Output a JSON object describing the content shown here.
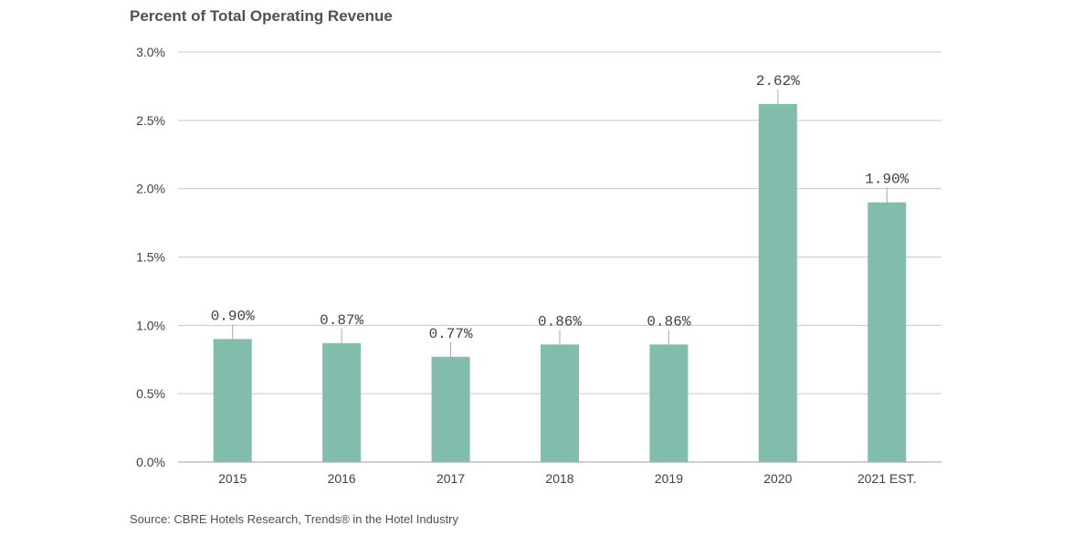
{
  "chart_data": {
    "type": "bar",
    "title": "Percent of Total Operating Revenue",
    "categories": [
      "2015",
      "2016",
      "2017",
      "2018",
      "2019",
      "2020",
      "2021 EST."
    ],
    "values": [
      0.9,
      0.87,
      0.77,
      0.86,
      0.86,
      2.62,
      1.9
    ],
    "value_labels": [
      "0.90%",
      "0.87%",
      "0.77%",
      "0.86%",
      "0.86%",
      "2.62%",
      "1.90%"
    ],
    "xlabel": "",
    "ylabel": "",
    "ylim": [
      0,
      3.0
    ],
    "yticks": [
      0,
      0.5,
      1.0,
      1.5,
      2.0,
      2.5,
      3.0
    ],
    "ytick_labels": [
      "0.0%",
      "0.5%",
      "1.0%",
      "1.5%",
      "2.0%",
      "2.5%",
      "3.0%"
    ],
    "grid": true,
    "legend": "none",
    "bar_color": "#82bcac",
    "grid_color": "#c8cacb",
    "text_color": "#3c4247"
  },
  "source": "Source: CBRE Hotels Research, Trends® in the Hotel Industry"
}
